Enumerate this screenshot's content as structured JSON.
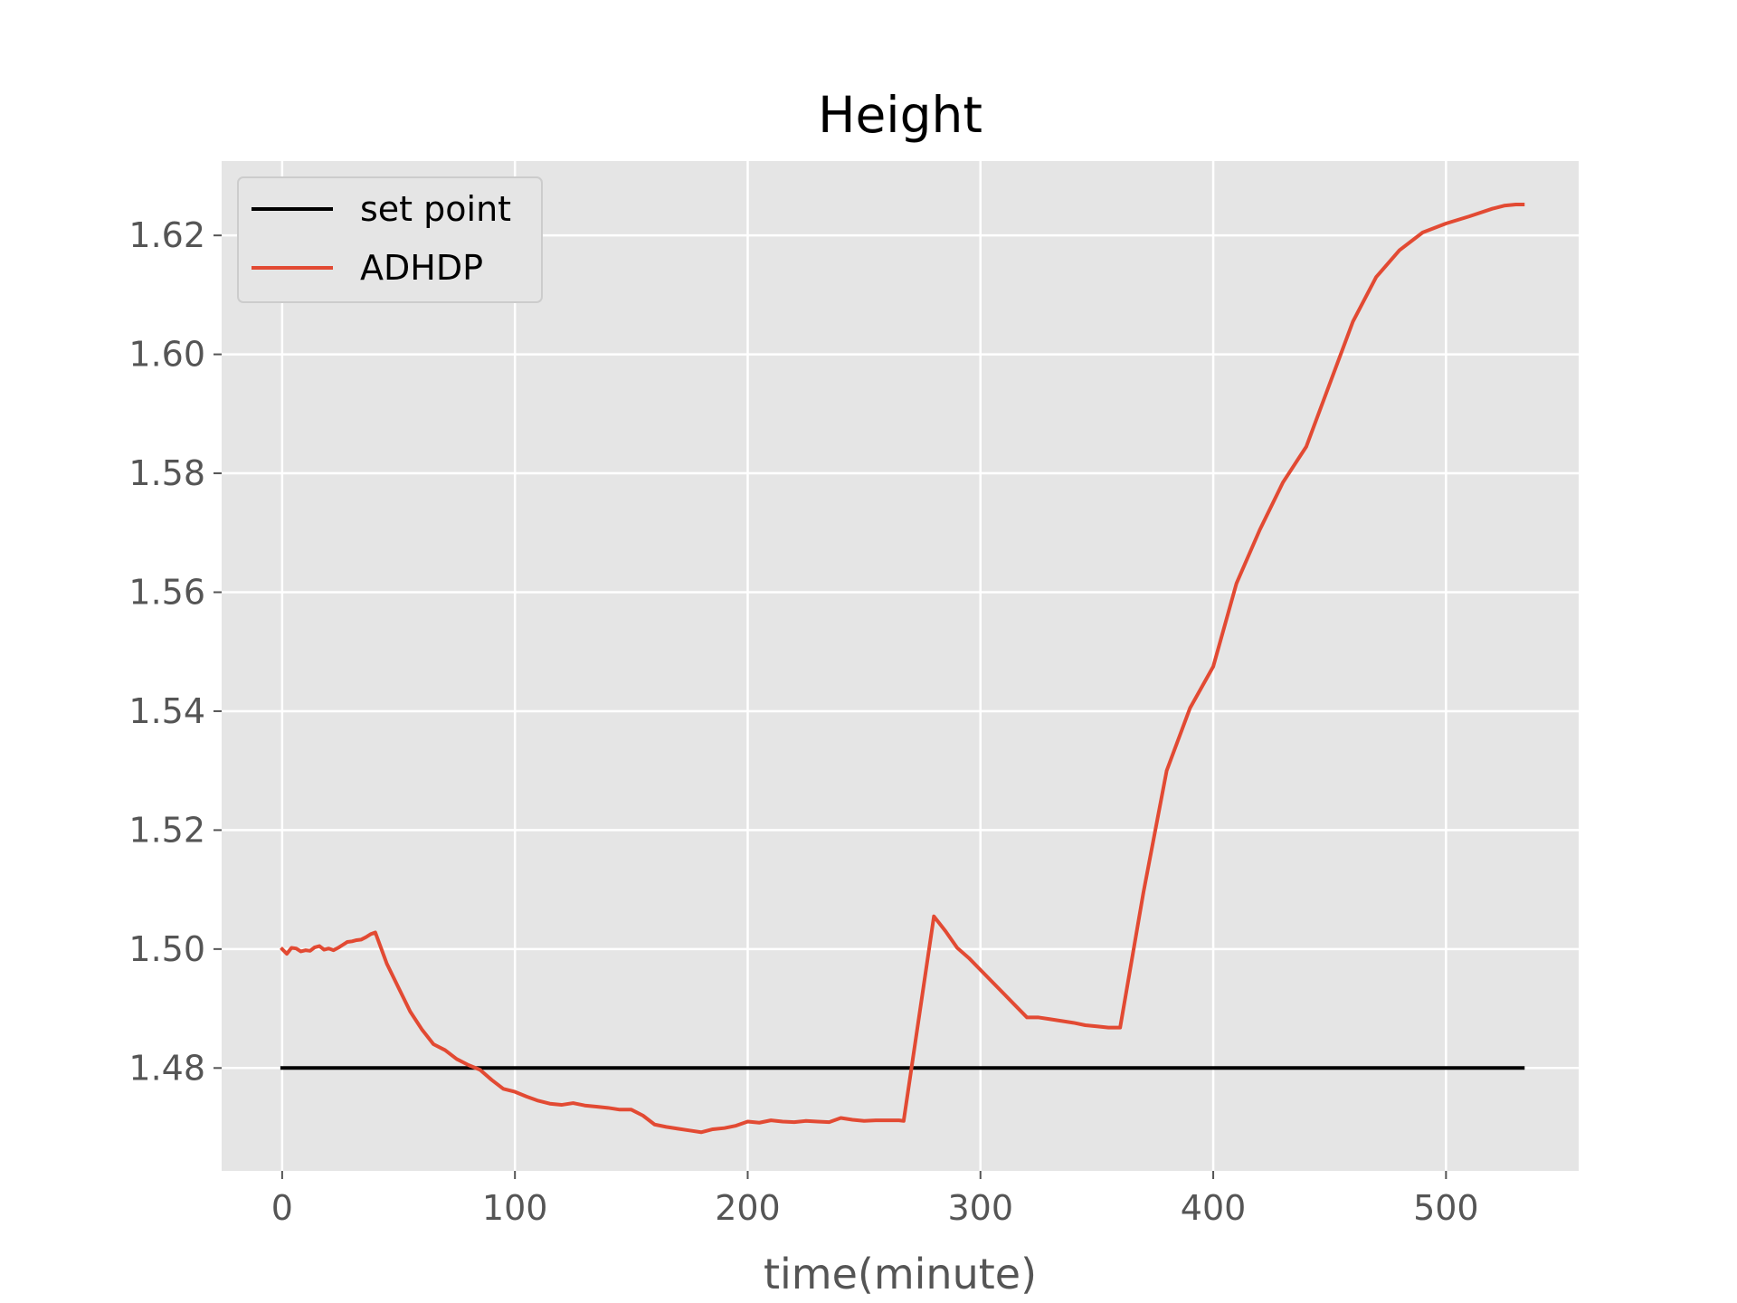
{
  "chart_data": {
    "type": "line",
    "title": "Height",
    "xlabel": "time(minute)",
    "ylabel": "",
    "xlim": [
      -26,
      557
    ],
    "ylim": [
      1.4627,
      1.6325
    ],
    "xticks": [
      0,
      100,
      200,
      300,
      400,
      500
    ],
    "xtick_labels": [
      "0",
      "100",
      "200",
      "300",
      "400",
      "500"
    ],
    "yticks": [
      1.48,
      1.5,
      1.52,
      1.54,
      1.56,
      1.58,
      1.6,
      1.62
    ],
    "ytick_labels": [
      "1.48",
      "1.50",
      "1.52",
      "1.54",
      "1.56",
      "1.58",
      "1.60",
      "1.62"
    ],
    "grid": true,
    "legend_position": "top-left",
    "series": [
      {
        "name": "set point",
        "color": "#000000",
        "x": [
          0,
          533
        ],
        "y": [
          1.48,
          1.48
        ]
      },
      {
        "name": "ADHDP",
        "color": "#E24A33",
        "x": [
          0,
          2,
          4,
          6,
          8,
          10,
          12,
          14,
          16,
          18,
          20,
          22,
          24,
          26,
          28,
          30,
          32,
          34,
          36,
          38,
          40,
          45,
          50,
          55,
          60,
          65,
          70,
          75,
          80,
          85,
          90,
          95,
          100,
          105,
          110,
          115,
          120,
          125,
          130,
          135,
          140,
          145,
          150,
          155,
          160,
          165,
          170,
          175,
          180,
          185,
          190,
          195,
          200,
          205,
          210,
          215,
          220,
          225,
          230,
          235,
          240,
          245,
          250,
          255,
          260,
          265,
          267,
          280,
          285,
          290,
          295,
          300,
          305,
          310,
          315,
          320,
          325,
          330,
          335,
          340,
          345,
          350,
          355,
          360,
          370,
          380,
          390,
          400,
          410,
          420,
          430,
          440,
          450,
          460,
          470,
          480,
          490,
          500,
          510,
          520,
          525,
          530,
          533
        ],
        "y": [
          1.5,
          1.4992,
          1.5002,
          1.5001,
          1.4996,
          1.4998,
          1.4997,
          1.5003,
          1.5005,
          1.4999,
          1.5001,
          1.4998,
          1.5002,
          1.5007,
          1.5012,
          1.5013,
          1.5015,
          1.5016,
          1.502,
          1.5025,
          1.5028,
          1.4975,
          1.4935,
          1.4895,
          1.4865,
          1.484,
          1.483,
          1.4815,
          1.4805,
          1.4797,
          1.478,
          1.4765,
          1.476,
          1.4752,
          1.4745,
          1.474,
          1.4738,
          1.4741,
          1.4737,
          1.4735,
          1.4733,
          1.473,
          1.473,
          1.472,
          1.4705,
          1.4701,
          1.4698,
          1.4695,
          1.4692,
          1.4697,
          1.4699,
          1.4703,
          1.471,
          1.4708,
          1.4712,
          1.471,
          1.4709,
          1.4711,
          1.471,
          1.4709,
          1.4716,
          1.4713,
          1.4711,
          1.4712,
          1.4712,
          1.4712,
          1.4711,
          1.5055,
          1.503,
          1.5002,
          1.4985,
          1.4965,
          1.4945,
          1.4925,
          1.4905,
          1.4885,
          1.4885,
          1.4882,
          1.4879,
          1.4876,
          1.4872,
          1.487,
          1.4868,
          1.4868,
          1.5095,
          1.53,
          1.5405,
          1.5475,
          1.5615,
          1.5705,
          1.5785,
          1.5845,
          1.595,
          1.6055,
          1.613,
          1.6175,
          1.6205,
          1.622,
          1.6232,
          1.6245,
          1.625,
          1.6252,
          1.6252
        ]
      }
    ]
  }
}
